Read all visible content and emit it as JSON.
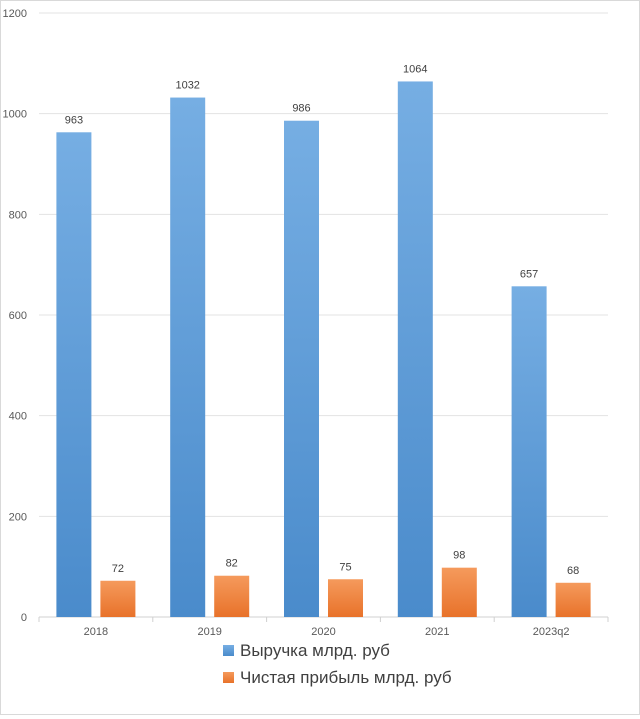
{
  "chart_data": {
    "type": "bar",
    "categories": [
      "2018",
      "2019",
      "2020",
      "2021",
      "2023q2"
    ],
    "series": [
      {
        "name": "Выручка млрд. руб",
        "values": [
          963,
          1032,
          986,
          1064,
          657
        ],
        "color": "#5b9bd5"
      },
      {
        "name": "Чистая прибыль млрд. руб",
        "values": [
          72,
          82,
          75,
          98,
          68
        ],
        "color": "#ed7d31"
      }
    ],
    "ylim": [
      0,
      1200
    ],
    "yticks": [
      "0",
      "200",
      "400",
      "600",
      "800",
      "1000",
      "1200"
    ],
    "grid": true,
    "legend_position": "bottom",
    "data_labels": true
  }
}
